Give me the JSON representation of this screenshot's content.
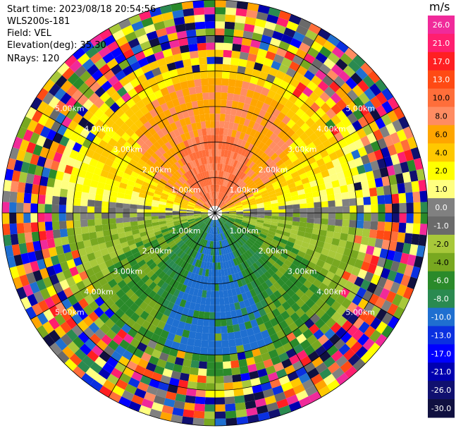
{
  "header": {
    "start_time": "Start time: 2023/08/18 20:54:56",
    "instrument": "WLS200s-181",
    "field": "Field: VEL",
    "elevation": "Elevation(deg): 35.30",
    "nrays": "NRays: 120"
  },
  "colorbar": {
    "unit": "m/s",
    "ticks": [
      "26.0",
      "21.0",
      "17.0",
      "13.0",
      "10.0",
      "8.0",
      "6.0",
      "4.0",
      "2.0",
      "1.0",
      "0.0",
      "-1.0",
      "-2.0",
      "-4.0",
      "-6.0",
      "-8.0",
      "-10.0",
      "-13.0",
      "-17.0",
      "-21.0",
      "-26.0",
      "-30.0"
    ],
    "colors": [
      "#f02a9a",
      "#ff1f6f",
      "#ff1f22",
      "#ff4a14",
      "#ff6e3a",
      "#ff8c62",
      "#ffa500",
      "#ffc800",
      "#ffff00",
      "#ffff80",
      "#808080",
      "#6a6a6a",
      "#a8c83a",
      "#78a820",
      "#2a8a2a",
      "#2a8a50",
      "#1f6fd0",
      "#0a30e0",
      "#0000ff",
      "#0000b0",
      "#101070",
      "#101040"
    ]
  },
  "chart_data": {
    "type": "ppi",
    "field": "VEL",
    "nrays": 120,
    "range_rings_km": [
      {
        "value": 1,
        "label": "1.00km"
      },
      {
        "value": 2,
        "label": "2.00km"
      },
      {
        "value": 3,
        "label": "3.00km"
      },
      {
        "value": 4,
        "label": "4.00km"
      },
      {
        "value": 5,
        "label": "5.00km"
      }
    ],
    "max_range_km": 6.0,
    "radial_lines_deg": [
      0,
      30,
      60,
      90,
      120,
      150,
      180,
      210,
      240,
      270,
      300,
      330
    ],
    "velocity_pattern": {
      "north_sector": "positive (2 to 13 m/s, peak ~10 near center)",
      "south_sector": "negative (-1 to -10 m/s)",
      "outer_ring_km": 4.5,
      "outer_ring_note": "noisy mixed values beyond ~4.5 km"
    }
  }
}
